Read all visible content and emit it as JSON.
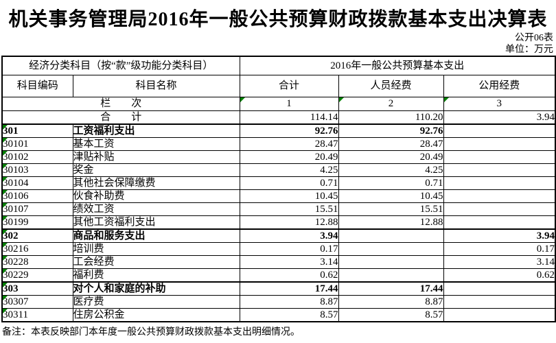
{
  "title": "机关事务管理局2016年一般公共预算财政拨款基本支出决算表",
  "meta": {
    "table_no": "公开06表",
    "unit": "单位：万元"
  },
  "table": {
    "group_headers": [
      "经济分类科目（按“款”级功能分类科目）",
      "2016年一般公共预算基本支出"
    ],
    "columns": [
      "科目编码",
      "科目名称",
      "合计",
      "人员经费",
      "公用经费"
    ],
    "column_index_row": {
      "label": "栏　　次",
      "indices": [
        "1",
        "2",
        "3"
      ]
    },
    "total_row": {
      "label": "合　　计",
      "values": [
        "114.14",
        "110.20",
        "3.94"
      ]
    },
    "rows": [
      {
        "code": "301",
        "name": "工资福利支出",
        "total": "92.76",
        "personnel": "92.76",
        "public": "",
        "bold": true
      },
      {
        "code": "30101",
        "name": "基本工资",
        "total": "28.47",
        "personnel": "28.47",
        "public": "",
        "bold": false
      },
      {
        "code": "30102",
        "name": "津贴补贴",
        "total": "20.49",
        "personnel": "20.49",
        "public": "",
        "bold": false
      },
      {
        "code": "30103",
        "name": "奖金",
        "total": "4.25",
        "personnel": "4.25",
        "public": "",
        "bold": false
      },
      {
        "code": "30104",
        "name": "其他社会保障缴费",
        "total": "0.71",
        "personnel": "0.71",
        "public": "",
        "bold": false
      },
      {
        "code": "30106",
        "name": "伙食补助费",
        "total": "10.45",
        "personnel": "10.45",
        "public": "",
        "bold": false
      },
      {
        "code": "30107",
        "name": "绩效工资",
        "total": "15.51",
        "personnel": "15.51",
        "public": "",
        "bold": false
      },
      {
        "code": "30199",
        "name": "其他工资福利支出",
        "total": "12.88",
        "personnel": "12.88",
        "public": "",
        "bold": false
      },
      {
        "code": "302",
        "name": "商品和服务支出",
        "total": "3.94",
        "personnel": "",
        "public": "3.94",
        "bold": true
      },
      {
        "code": "30216",
        "name": "培训费",
        "total": "0.17",
        "personnel": "",
        "public": "0.17",
        "bold": false
      },
      {
        "code": "30228",
        "name": "工会经费",
        "total": "3.14",
        "personnel": "",
        "public": "3.14",
        "bold": false
      },
      {
        "code": "30229",
        "name": "福利费",
        "total": "0.62",
        "personnel": "",
        "public": "0.62",
        "bold": false
      },
      {
        "code": "303",
        "name": "对个人和家庭的补助",
        "total": "17.44",
        "personnel": "17.44",
        "public": "",
        "bold": true
      },
      {
        "code": "30307",
        "name": "医疗费",
        "total": "8.87",
        "personnel": "8.87",
        "public": "",
        "bold": false
      },
      {
        "code": "30311",
        "name": "住房公积金",
        "total": "8.57",
        "personnel": "8.57",
        "public": "",
        "bold": false
      }
    ]
  },
  "footnote": "备注：本表反映部门本年度一般公共预算财政拨款基本支出明细情况。",
  "colors": {
    "grid": "#000000",
    "corner_marker": "#008000"
  }
}
